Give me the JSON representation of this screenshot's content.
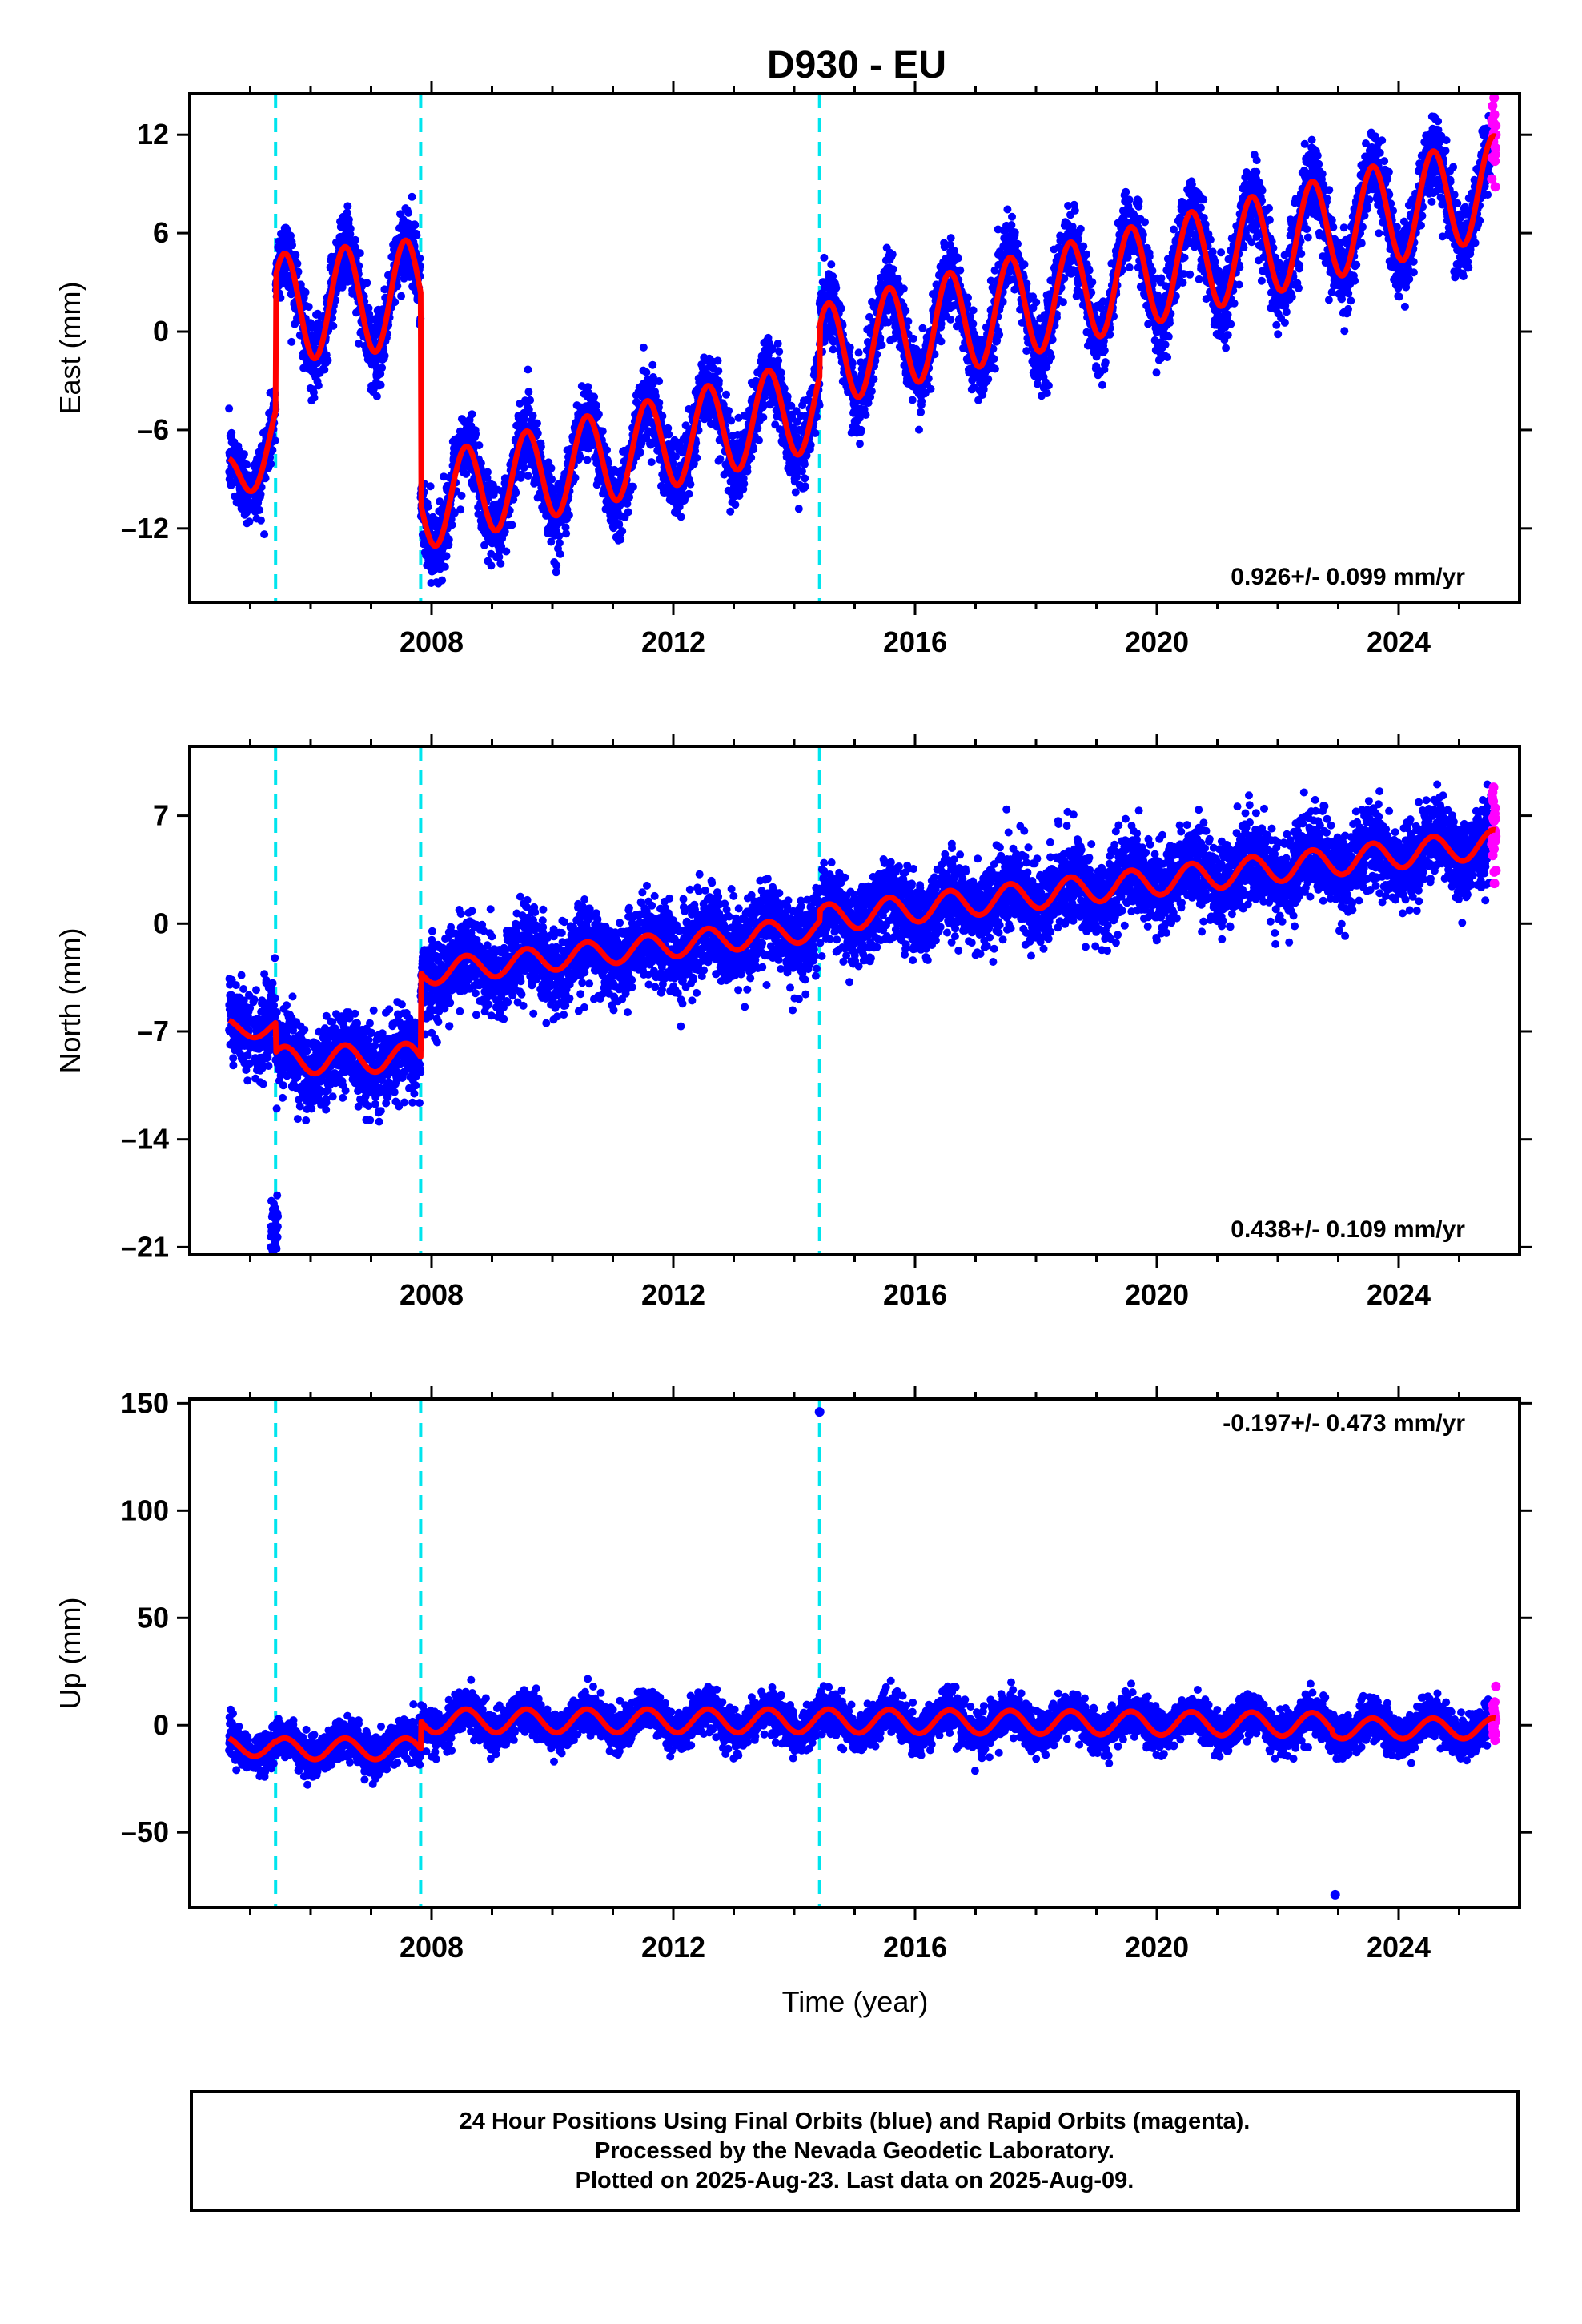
{
  "chart_data": {
    "title": "D930 - EU",
    "xlabel": "Time (year)",
    "xlim": [
      2004.0,
      2026.0
    ],
    "xticks": [
      2008,
      2012,
      2016,
      2020,
      2024
    ],
    "xtick_labels": [
      "2008",
      "2012",
      "2016",
      "2020",
      "2024"
    ],
    "colors": {
      "final_orbits": "#0000ff",
      "rapid_orbits": "#ff00ff",
      "model": "#ff0000",
      "equipment_change": "#00e5ee"
    },
    "panels": [
      {
        "type": "scatter",
        "ylabel": "East (mm)",
        "ylim": [
          -16.5,
          14.5
        ],
        "yticks": [
          12,
          6,
          0,
          -6,
          -12
        ],
        "ytick_labels": [
          "12",
          "6",
          "0",
          "-6",
          "-12"
        ],
        "velocity_label": "0.926+/- 0.099 mm/yr",
        "velocity_placement": "bottom-right",
        "offsets_at": [
          2005.42,
          2007.82,
          2014.42
        ],
        "model_segments": [
          {
            "start": 2004.65,
            "end": 2005.42,
            "intercept_at_start": -9.5,
            "rate": 4.5,
            "annual_amp": 2.0
          },
          {
            "start": 2005.42,
            "end": 2007.82,
            "intercept_at_start": 1.4,
            "rate": 0.4,
            "annual_amp": 3.3
          },
          {
            "start": 2007.82,
            "end": 2014.42,
            "intercept_at_start": -10.5,
            "rate": 0.926,
            "annual_amp": 2.8
          },
          {
            "start": 2014.42,
            "end": 2025.6,
            "intercept_at_start": -1.5,
            "rate": 0.926,
            "annual_amp": 3.1
          }
        ],
        "scatter_sd": 1.1
      },
      {
        "type": "scatter",
        "ylabel": "North (mm)",
        "ylim": [
          -21.5,
          11.5
        ],
        "yticks": [
          7,
          0,
          -7,
          -14,
          -21
        ],
        "ytick_labels": [
          "7",
          "0",
          "-7",
          "-14",
          "-21"
        ],
        "velocity_label": "0.438+/- 0.109 mm/yr",
        "velocity_placement": "bottom-right",
        "offsets_at": [
          2005.42,
          2007.82,
          2014.42
        ],
        "model_segments": [
          {
            "start": 2004.65,
            "end": 2005.42,
            "intercept_at_start": -6.8,
            "rate": 0.0,
            "annual_amp": 0.6
          },
          {
            "start": 2005.42,
            "end": 2007.82,
            "intercept_at_start": -8.9,
            "rate": 0.1,
            "annual_amp": 0.9
          },
          {
            "start": 2007.82,
            "end": 2014.42,
            "intercept_at_start": -3.2,
            "rate": 0.438,
            "annual_amp": 0.8
          },
          {
            "start": 2014.42,
            "end": 2025.6,
            "intercept_at_start": 0.3,
            "rate": 0.438,
            "annual_amp": 0.9
          }
        ],
        "scatter_sd": 1.3
      },
      {
        "type": "scatter",
        "ylabel": "Up (mm)",
        "ylim": [
          -85,
          152
        ],
        "yticks": [
          150,
          100,
          50,
          0,
          -50
        ],
        "ytick_labels": [
          "150",
          "100",
          "50",
          "0",
          "-50"
        ],
        "velocity_label": "-0.197+/- 0.473 mm/yr",
        "velocity_placement": "top-right",
        "offsets_at": [
          2005.42,
          2007.82,
          2014.42
        ],
        "model_segments": [
          {
            "start": 2004.65,
            "end": 2005.42,
            "intercept_at_start": -10.0,
            "rate": 0.0,
            "annual_amp": 4.5
          },
          {
            "start": 2005.42,
            "end": 2007.82,
            "intercept_at_start": -11.0,
            "rate": 0.0,
            "annual_amp": 5.0
          },
          {
            "start": 2007.82,
            "end": 2014.42,
            "intercept_at_start": 2.0,
            "rate": 0.0,
            "annual_amp": 5.5
          },
          {
            "start": 2014.42,
            "end": 2022.9,
            "intercept_at_start": 2.0,
            "rate": -0.2,
            "annual_amp": 5.5
          },
          {
            "start": 2022.9,
            "end": 2025.6,
            "intercept_at_start": -1.5,
            "rate": 0.0,
            "annual_amp": 4.8
          }
        ],
        "scatter_sd": 4.5,
        "outliers": [
          {
            "x": 2014.42,
            "y": 146
          },
          {
            "x": 2022.95,
            "y": -79
          }
        ]
      }
    ]
  },
  "footer": {
    "line1": "24 Hour Positions Using Final Orbits (blue) and Rapid Orbits (magenta).",
    "line2": "Processed by the Nevada Geodetic Laboratory.",
    "line3": "Plotted on 2025-Aug-23. Last data on 2025-Aug-09."
  }
}
